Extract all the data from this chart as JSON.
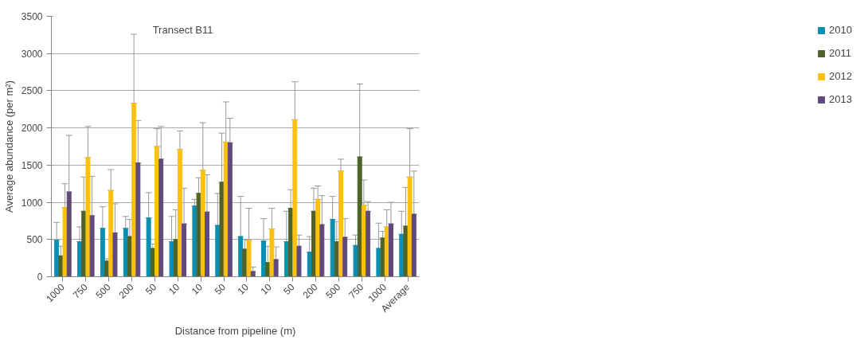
{
  "chart_data": {
    "type": "bar",
    "xlabel": "Distance from pipeline (m)",
    "ylabel": "Average abundance (per m²)",
    "annotations": [
      "Transect  B11"
    ],
    "categories": [
      "1000",
      "750",
      "500",
      "200",
      "50",
      "10",
      "10",
      "50",
      "10",
      "10",
      "50",
      "200",
      "500",
      "750",
      "1000",
      "Average"
    ],
    "ylim": [
      0,
      3500
    ],
    "yticks": [
      0,
      500,
      1000,
      1500,
      2000,
      2500,
      3000,
      3500
    ],
    "grid": "y",
    "legend": "right",
    "series": [
      {
        "name": "2010",
        "color": "#0a8fb0",
        "values": [
          490,
          470,
          650,
          650,
          790,
          470,
          950,
          690,
          540,
          480,
          470,
          330,
          770,
          420,
          380,
          570
        ],
        "errors": [
          [
            490,
            730
          ],
          [
            470,
            670
          ],
          [
            650,
            940
          ],
          [
            650,
            810
          ],
          [
            790,
            1130
          ],
          [
            470,
            810
          ],
          [
            950,
            1040
          ],
          [
            690,
            1120
          ],
          [
            540,
            1080
          ],
          [
            480,
            780
          ],
          [
            470,
            880
          ],
          [
            330,
            540
          ],
          [
            770,
            1080
          ],
          [
            420,
            560
          ],
          [
            380,
            720
          ],
          [
            570,
            880
          ]
        ]
      },
      {
        "name": "2011",
        "color": "#4f6228",
        "values": [
          280,
          880,
          210,
          540,
          380,
          500,
          1120,
          1270,
          370,
          190,
          920,
          880,
          470,
          1610,
          520,
          680
        ],
        "errors": [
          [
            280,
            410
          ],
          [
            880,
            1340
          ],
          [
            210,
            240
          ],
          [
            540,
            770
          ],
          [
            380,
            440
          ],
          [
            500,
            900
          ],
          [
            1120,
            1330
          ],
          [
            1270,
            1930
          ],
          [
            370,
            500
          ],
          [
            190,
            410
          ],
          [
            920,
            1170
          ],
          [
            880,
            1190
          ],
          [
            470,
            740
          ],
          [
            1610,
            2590
          ],
          [
            520,
            610
          ],
          [
            680,
            1200
          ]
        ]
      },
      {
        "name": "2012",
        "color": "#fcc010",
        "values": [
          930,
          1600,
          1160,
          2330,
          1750,
          1710,
          1430,
          1810,
          490,
          640,
          2110,
          1040,
          1420,
          960,
          670,
          1340
        ],
        "errors": [
          [
            930,
            1250
          ],
          [
            1600,
            2020
          ],
          [
            1160,
            1440
          ],
          [
            2330,
            3260
          ],
          [
            1750,
            1990
          ],
          [
            1710,
            1960
          ],
          [
            1430,
            2070
          ],
          [
            1810,
            2350
          ],
          [
            490,
            920
          ],
          [
            640,
            920
          ],
          [
            2110,
            2620
          ],
          [
            1040,
            1220
          ],
          [
            1420,
            1580
          ],
          [
            960,
            1300
          ],
          [
            670,
            900
          ],
          [
            1340,
            1990
          ]
        ]
      },
      {
        "name": "2013",
        "color": "#604a7b",
        "values": [
          1140,
          820,
          590,
          1530,
          1580,
          710,
          870,
          1800,
          70,
          230,
          410,
          700,
          530,
          880,
          710,
          840
        ],
        "errors": [
          [
            1140,
            1900
          ],
          [
            820,
            1350
          ],
          [
            590,
            980
          ],
          [
            1530,
            2100
          ],
          [
            1580,
            2020
          ],
          [
            710,
            1190
          ],
          [
            870,
            1370
          ],
          [
            1800,
            2130
          ],
          [
            70,
            130
          ],
          [
            230,
            400
          ],
          [
            410,
            560
          ],
          [
            700,
            1090
          ],
          [
            530,
            780
          ],
          [
            880,
            1010
          ],
          [
            710,
            1000
          ],
          [
            840,
            1420
          ]
        ]
      }
    ]
  }
}
